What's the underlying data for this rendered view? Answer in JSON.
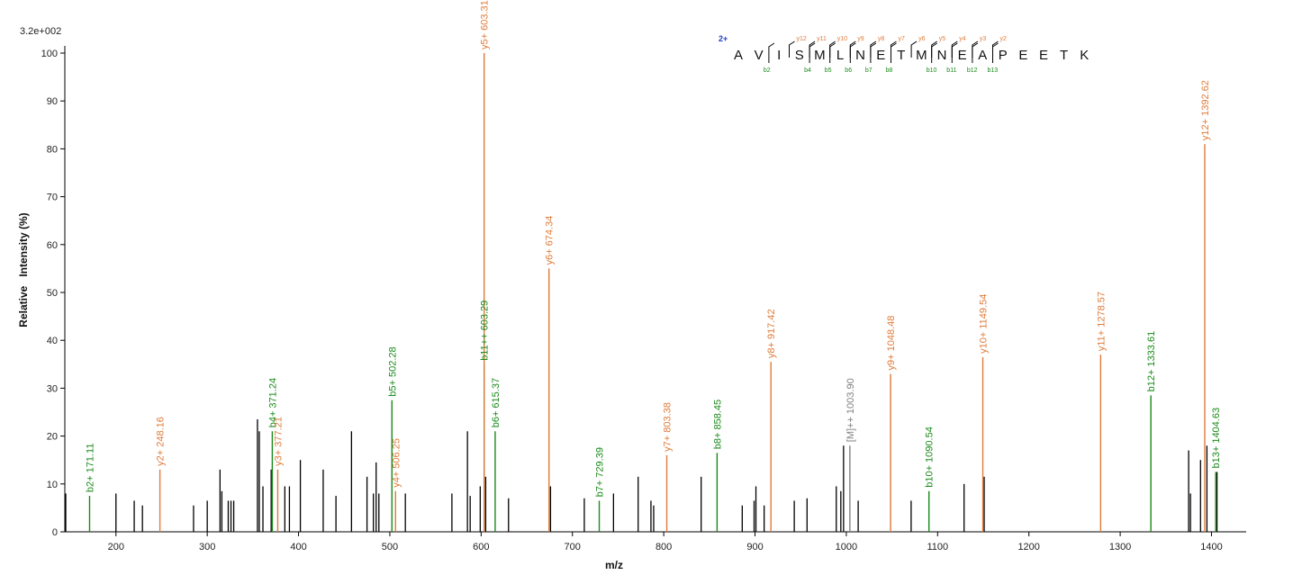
{
  "colors": {
    "y": "#e07b39",
    "b": "#1a8a1a",
    "other": "#000000",
    "precursor": "#808080",
    "charge": "#1f3fbf"
  },
  "chart_data": {
    "type": "bar",
    "title": "",
    "scale_label": "3.2e+002",
    "xlabel": "m/z",
    "ylabel": "Relative   Intensity (%)",
    "xlim": [
      144,
      1438
    ],
    "ylim": [
      0,
      100
    ],
    "x_ticks": [
      "200",
      "300",
      "400",
      "500",
      "600",
      "700",
      "800",
      "900",
      "1000",
      "1100",
      "1200",
      "1300",
      "1400"
    ],
    "y_ticks": [
      "0",
      "10",
      "20",
      "30",
      "40",
      "50",
      "60",
      "70",
      "80",
      "90",
      "100"
    ],
    "labeled_peaks": [
      {
        "mz": 171.11,
        "intensity": 7.5,
        "type": "b",
        "label": "b2+ 171.11"
      },
      {
        "mz": 248.16,
        "intensity": 13,
        "type": "y",
        "label": "y2+ 248.16"
      },
      {
        "mz": 371.24,
        "intensity": 21,
        "type": "b",
        "label": "b4+ 371.24"
      },
      {
        "mz": 377.21,
        "intensity": 13,
        "type": "y",
        "label": "y3+ 377.21"
      },
      {
        "mz": 502.28,
        "intensity": 27.5,
        "type": "b",
        "label": "b5+ 502.28"
      },
      {
        "mz": 506.25,
        "intensity": 8.5,
        "type": "y",
        "label": "y4+ 506.25"
      },
      {
        "mz": 603.29,
        "intensity": 35,
        "type": "b",
        "label": "b11++ 603.29"
      },
      {
        "mz": 603.31,
        "intensity": 100,
        "type": "y",
        "label": "y5+ 603.31"
      },
      {
        "mz": 615.37,
        "intensity": 21,
        "type": "b",
        "label": "b6+ 615.37"
      },
      {
        "mz": 674.34,
        "intensity": 55,
        "type": "y",
        "label": "y6+ 674.34"
      },
      {
        "mz": 729.39,
        "intensity": 6.5,
        "type": "b",
        "label": "b7+ 729.39"
      },
      {
        "mz": 803.38,
        "intensity": 16,
        "type": "y",
        "label": "y7+ 803.38"
      },
      {
        "mz": 858.45,
        "intensity": 16.5,
        "type": "b",
        "label": "b8+ 858.45"
      },
      {
        "mz": 917.42,
        "intensity": 35.5,
        "type": "y",
        "label": "y8+ 917.42"
      },
      {
        "mz": 1003.9,
        "intensity": 18,
        "type": "precursor",
        "label": "[M]++ 1003.90"
      },
      {
        "mz": 1048.48,
        "intensity": 33,
        "type": "y",
        "label": "y9+ 1048.48"
      },
      {
        "mz": 1090.54,
        "intensity": 8.5,
        "type": "b",
        "label": "b10+ 1090.54"
      },
      {
        "mz": 1149.54,
        "intensity": 36.5,
        "type": "y",
        "label": "y10+ 1149.54"
      },
      {
        "mz": 1278.57,
        "intensity": 37,
        "type": "y",
        "label": "y11+ 1278.57"
      },
      {
        "mz": 1333.61,
        "intensity": 28.5,
        "type": "b",
        "label": "b12+ 1333.61"
      },
      {
        "mz": 1392.62,
        "intensity": 81,
        "type": "y",
        "label": "y12+ 1392.62"
      },
      {
        "mz": 1404.63,
        "intensity": 12.5,
        "type": "b",
        "label": "b13+ 1404.63"
      }
    ],
    "unlabeled_peaks": [
      {
        "mz": 145,
        "intensity": 8
      },
      {
        "mz": 200,
        "intensity": 8
      },
      {
        "mz": 220,
        "intensity": 6.5
      },
      {
        "mz": 229,
        "intensity": 5.5
      },
      {
        "mz": 285,
        "intensity": 5.5
      },
      {
        "mz": 300,
        "intensity": 6.5
      },
      {
        "mz": 314,
        "intensity": 13
      },
      {
        "mz": 316,
        "intensity": 8.5
      },
      {
        "mz": 323,
        "intensity": 6.5
      },
      {
        "mz": 326,
        "intensity": 6.5
      },
      {
        "mz": 329,
        "intensity": 6.5
      },
      {
        "mz": 355,
        "intensity": 23.5
      },
      {
        "mz": 357,
        "intensity": 21
      },
      {
        "mz": 361,
        "intensity": 9.5
      },
      {
        "mz": 370,
        "intensity": 13
      },
      {
        "mz": 385,
        "intensity": 9.5
      },
      {
        "mz": 390,
        "intensity": 9.5
      },
      {
        "mz": 402,
        "intensity": 15
      },
      {
        "mz": 427,
        "intensity": 13
      },
      {
        "mz": 441,
        "intensity": 7.5
      },
      {
        "mz": 458,
        "intensity": 21
      },
      {
        "mz": 475,
        "intensity": 11.5
      },
      {
        "mz": 482,
        "intensity": 8
      },
      {
        "mz": 485,
        "intensity": 14.5
      },
      {
        "mz": 488,
        "intensity": 8
      },
      {
        "mz": 517,
        "intensity": 8
      },
      {
        "mz": 568,
        "intensity": 8
      },
      {
        "mz": 585,
        "intensity": 21
      },
      {
        "mz": 588,
        "intensity": 7.5
      },
      {
        "mz": 599,
        "intensity": 9.5
      },
      {
        "mz": 605,
        "intensity": 11.5
      },
      {
        "mz": 630,
        "intensity": 7
      },
      {
        "mz": 676,
        "intensity": 9.5
      },
      {
        "mz": 713,
        "intensity": 7
      },
      {
        "mz": 745,
        "intensity": 8
      },
      {
        "mz": 772,
        "intensity": 11.5
      },
      {
        "mz": 786,
        "intensity": 6.5
      },
      {
        "mz": 789,
        "intensity": 5.5
      },
      {
        "mz": 841,
        "intensity": 11.5
      },
      {
        "mz": 886,
        "intensity": 5.5
      },
      {
        "mz": 899,
        "intensity": 6.5
      },
      {
        "mz": 901,
        "intensity": 9.5
      },
      {
        "mz": 910,
        "intensity": 5.5
      },
      {
        "mz": 943,
        "intensity": 6.5
      },
      {
        "mz": 957,
        "intensity": 7
      },
      {
        "mz": 989,
        "intensity": 9.5
      },
      {
        "mz": 994,
        "intensity": 8.5
      },
      {
        "mz": 997,
        "intensity": 18
      },
      {
        "mz": 1013,
        "intensity": 6.5
      },
      {
        "mz": 1071,
        "intensity": 6.5
      },
      {
        "mz": 1129,
        "intensity": 10
      },
      {
        "mz": 1151,
        "intensity": 11.5
      },
      {
        "mz": 1375,
        "intensity": 17
      },
      {
        "mz": 1377,
        "intensity": 8
      },
      {
        "mz": 1388,
        "intensity": 15
      },
      {
        "mz": 1395,
        "intensity": 18
      },
      {
        "mz": 1406,
        "intensity": 12.5
      }
    ]
  },
  "sequence": {
    "charge": "2+",
    "residues": [
      "A",
      "V",
      "I",
      "S",
      "M",
      "L",
      "N",
      "E",
      "T",
      "M",
      "N",
      "E",
      "A",
      "P",
      "E",
      "E",
      "T",
      "K"
    ],
    "y_ions": [
      {
        "after": 3,
        "label": "y12"
      },
      {
        "after": 4,
        "label": "y11"
      },
      {
        "after": 5,
        "label": "y10"
      },
      {
        "after": 6,
        "label": "y9"
      },
      {
        "after": 7,
        "label": "y8"
      },
      {
        "after": 8,
        "label": "y7"
      },
      {
        "after": 9,
        "label": "y6"
      },
      {
        "after": 10,
        "label": "y5"
      },
      {
        "after": 11,
        "label": "y4"
      },
      {
        "after": 12,
        "label": "y3"
      },
      {
        "after": 13,
        "label": "y2"
      }
    ],
    "b_ions": [
      {
        "after": 2,
        "label": "b2"
      },
      {
        "after": 4,
        "label": "b4"
      },
      {
        "after": 5,
        "label": "b5"
      },
      {
        "after": 6,
        "label": "b6"
      },
      {
        "after": 7,
        "label": "b7"
      },
      {
        "after": 8,
        "label": "b8"
      },
      {
        "after": 10,
        "label": "b10"
      },
      {
        "after": 11,
        "label": "b11"
      },
      {
        "after": 12,
        "label": "b12"
      },
      {
        "after": 13,
        "label": "b13"
      }
    ]
  }
}
